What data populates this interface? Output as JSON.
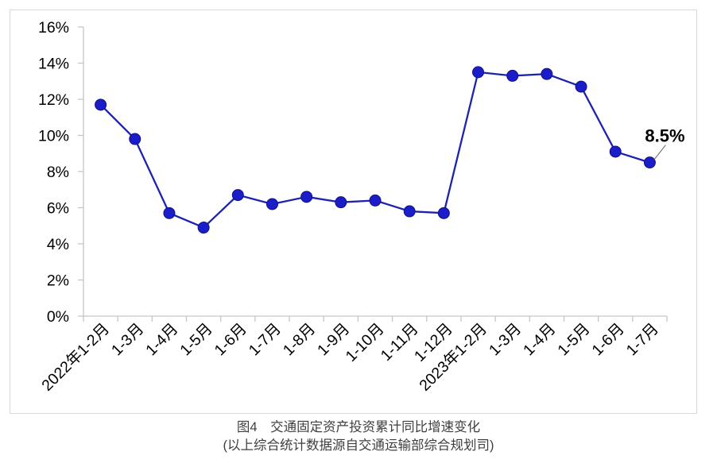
{
  "chart_data": {
    "type": "line",
    "title": "图4　交通固定资产投资累计同比增速变化",
    "source_note": "(以上综合统计数据源自交通运输部综合规划司)",
    "xlabel": "",
    "ylabel": "",
    "categories": [
      "2022年1-2月",
      "1-3月",
      "1-4月",
      "1-5月",
      "1-6月",
      "1-7月",
      "1-8月",
      "1-9月",
      "1-10月",
      "1-11月",
      "1-12月",
      "2023年1-2月",
      "1-3月",
      "1-4月",
      "1-5月",
      "1-6月",
      "1-7月"
    ],
    "series": [
      {
        "name": "交通固定资产投资累计同比增速",
        "values": [
          11.7,
          9.8,
          5.7,
          4.9,
          6.7,
          6.2,
          6.6,
          6.3,
          6.4,
          5.8,
          5.7,
          13.5,
          13.3,
          13.4,
          12.7,
          9.1,
          8.5
        ]
      }
    ],
    "ylim": [
      0,
      16
    ],
    "y_tick_step": 2,
    "y_tick_labels": [
      "0%",
      "2%",
      "4%",
      "6%",
      "8%",
      "10%",
      "12%",
      "14%",
      "16%"
    ],
    "grid": false,
    "legend": "none",
    "annotation": {
      "text": "8.5%",
      "point_index": 16
    },
    "colors": {
      "line": "#1e23ad",
      "marker_fill": "#1b1dcb",
      "marker_stroke": "#11127d",
      "axis": "#c6c6c6",
      "border": "#d9d9d9",
      "tick_label": "#000000",
      "leader_line": "#595959",
      "caption_text": "#3f3f3f"
    }
  }
}
